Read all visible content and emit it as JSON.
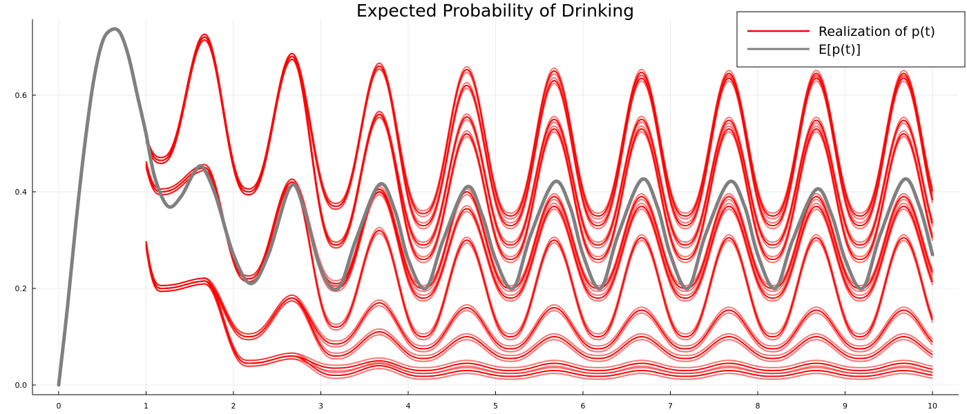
{
  "chart_data": {
    "type": "line",
    "title": "Expected Probability of Drinking",
    "xlabel": "",
    "ylabel": "",
    "xlim": [
      -0.3,
      10.3
    ],
    "ylim": [
      -0.02,
      0.757
    ],
    "x_ticks": [
      "0",
      "1",
      "2",
      "3",
      "4",
      "5",
      "6",
      "7",
      "8",
      "9",
      "10"
    ],
    "y_ticks": [
      "0.0",
      "0.2",
      "0.4",
      "0.6"
    ],
    "grid": true,
    "legend_position": "top-right",
    "legend": [
      "Realization of p(t)",
      "E[p(t)]"
    ],
    "colors": {
      "realization": "#ff0000",
      "expected": "#808080",
      "axis": "#000000",
      "grid": "#e6e6e6"
    },
    "realization_families": [
      {
        "label_peak": 0.73,
        "values_at_peaks": [
          0.73,
          0.72,
          0.68,
          0.66,
          0.65,
          0.65,
          0.645,
          0.645,
          0.645,
          0.645
        ]
      },
      {
        "values_at_peaks": [
          0.73,
          0.45,
          0.42,
          0.405,
          0.4,
          0.39,
          0.39,
          0.39,
          0.39,
          0.39
        ]
      },
      {
        "values_at_peaks": [
          0.73,
          0.215,
          0.18,
          0.17,
          0.16,
          0.16,
          0.155,
          0.155,
          0.155,
          0.155
        ]
      },
      {
        "values_at_peaks": [
          0.73,
          0.215,
          0.06,
          0.05,
          0.045,
          0.045,
          0.045,
          0.045,
          0.045,
          0.045
        ]
      }
    ],
    "series": [
      {
        "name": "E[p(t)]",
        "x": [
          0,
          0.1,
          0.2,
          0.3,
          0.4,
          0.5,
          0.6,
          0.7,
          0.8,
          0.9,
          1.0,
          1.1,
          1.25,
          1.4,
          1.55,
          1.65,
          1.8,
          2.0,
          2.2,
          2.4,
          2.65,
          2.8,
          3.0,
          3.2,
          3.4,
          3.67,
          3.85,
          4.0,
          4.2,
          4.4,
          4.67,
          4.85,
          5.0,
          5.2,
          5.4,
          5.67,
          5.85,
          6.0,
          6.2,
          6.4,
          6.67,
          6.85,
          7.0,
          7.2,
          7.4,
          7.67,
          7.85,
          8.0,
          8.2,
          8.4,
          8.67,
          8.85,
          9.0,
          9.2,
          9.4,
          9.67,
          9.85,
          10.0
        ],
        "y": [
          0.0,
          0.16,
          0.34,
          0.5,
          0.63,
          0.71,
          0.735,
          0.73,
          0.68,
          0.6,
          0.52,
          0.43,
          0.37,
          0.39,
          0.44,
          0.45,
          0.39,
          0.27,
          0.21,
          0.27,
          0.41,
          0.37,
          0.24,
          0.2,
          0.3,
          0.415,
          0.36,
          0.26,
          0.2,
          0.3,
          0.41,
          0.35,
          0.26,
          0.2,
          0.31,
          0.42,
          0.37,
          0.27,
          0.2,
          0.31,
          0.425,
          0.37,
          0.27,
          0.2,
          0.31,
          0.42,
          0.37,
          0.27,
          0.2,
          0.3,
          0.405,
          0.35,
          0.26,
          0.2,
          0.31,
          0.425,
          0.37,
          0.27
        ]
      }
    ]
  }
}
